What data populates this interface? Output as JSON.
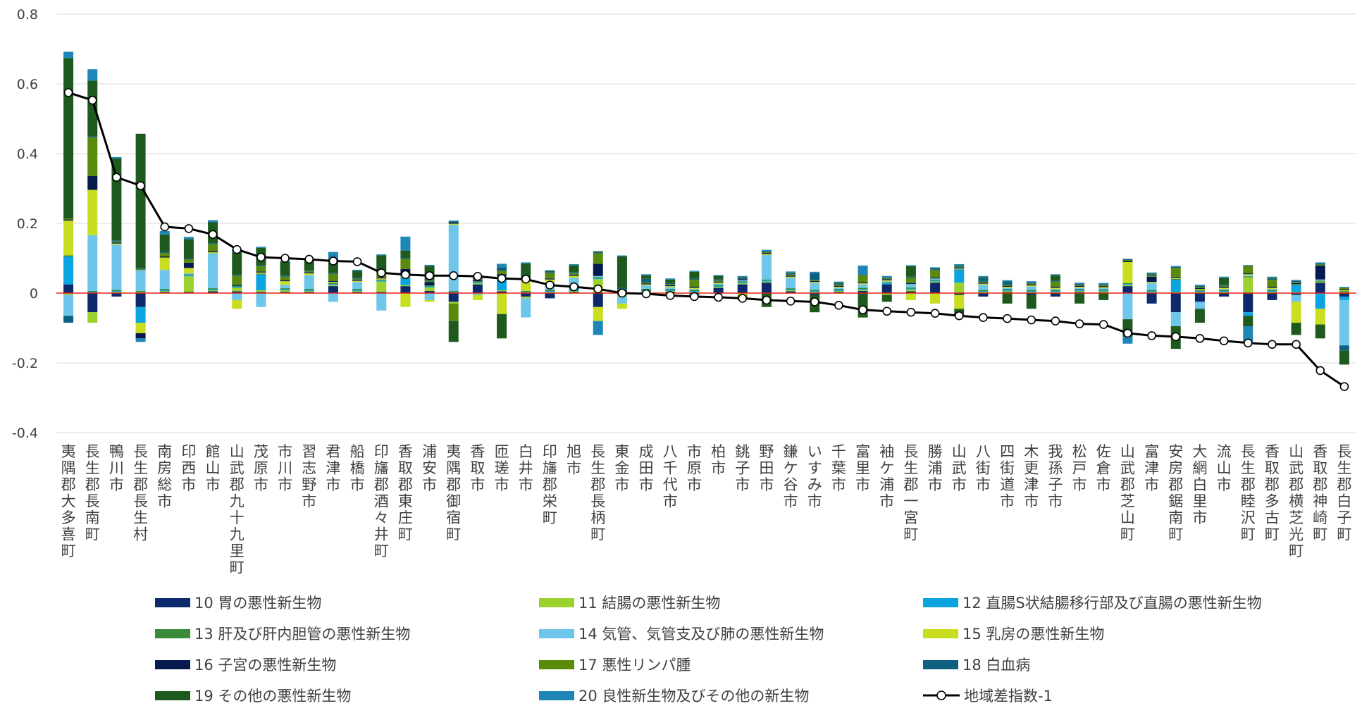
{
  "chart_data": {
    "type": "bar",
    "stacked": true,
    "ylim": [
      -0.4,
      0.8
    ],
    "yticks": [
      "0.8",
      "0.6",
      "0.4",
      "0.2",
      "0",
      "-0.2",
      "-0.4"
    ],
    "ytick_values": [
      0.8,
      0.6,
      0.4,
      0.2,
      0,
      -0.2,
      -0.4
    ],
    "zero_line_color": "#e2231a",
    "legend_position": "bottom",
    "categories": [
      "夷隅郡大多喜町",
      "長生郡長南町",
      "鴨川市",
      "長生郡長生村",
      "南房総市",
      "印西市",
      "館山市",
      "山武郡九十九里町",
      "茂原市",
      "市川市",
      "習志野市",
      "君津市",
      "船橋市",
      "印旛郡酒々井町",
      "香取郡東庄町",
      "浦安市",
      "夷隅郡御宿町",
      "香取市",
      "匝瑳市",
      "白井市",
      "印旛郡栄町",
      "旭市",
      "長生郡長柄町",
      "東金市",
      "成田市",
      "八千代市",
      "市原市",
      "柏市",
      "銚子市",
      "野田市",
      "鎌ケ谷市",
      "いすみ市",
      "千葉市",
      "富里市",
      "袖ケ浦市",
      "長生郡一宮町",
      "勝浦市",
      "山武市",
      "八街市",
      "四街道市",
      "木更津市",
      "我孫子市",
      "松戸市",
      "佐倉市",
      "山武郡芝山町",
      "富津市",
      "安房郡鋸南町",
      "大網白里市",
      "流山市",
      "長生郡睦沢町",
      "香取郡多古町",
      "山武郡横芝光町",
      "香取郡神崎町",
      "長生郡白子町"
    ],
    "series": [
      {
        "name": "10 胃の悪性新生物",
        "color": "#0c2a6b",
        "values": [
          0.025,
          -0.055,
          -0.01,
          -0.04,
          0.003,
          0.003,
          0.005,
          0.005,
          0.003,
          0.003,
          0.003,
          0.02,
          0.003,
          0.003,
          0.02,
          0.006,
          -0.025,
          0.025,
          0.005,
          -0.01,
          -0.015,
          0.003,
          -0.04,
          -0.005,
          0.003,
          0.003,
          -0.005,
          0.015,
          0.025,
          0.03,
          0.005,
          -0.005,
          0.003,
          0.006,
          0.025,
          0.005,
          0.03,
          -0.005,
          -0.01,
          0.003,
          -0.005,
          -0.01,
          0.003,
          0.002,
          0.02,
          -0.03,
          -0.055,
          -0.025,
          -0.01,
          -0.055,
          -0.02,
          -0.005,
          0.03,
          -0.01
        ]
      },
      {
        "name": "11 結腸の悪性新生物",
        "color": "#9bd22d",
        "values": [
          -0.005,
          -0.03,
          0.003,
          0.003,
          0.003,
          0.045,
          0.003,
          0.01,
          0.005,
          0.005,
          0.003,
          0.003,
          0.003,
          0.03,
          0.003,
          0.01,
          -0.005,
          0.003,
          0.003,
          -0.005,
          0.003,
          0.003,
          0.04,
          -0.005,
          0.003,
          0.003,
          0.003,
          0.003,
          0.003,
          0.003,
          0.003,
          0.003,
          0.003,
          0.003,
          -0.005,
          0.005,
          0.003,
          0.03,
          0.003,
          0.003,
          0.003,
          0.003,
          0.003,
          0.003,
          0.003,
          0.003,
          0.003,
          0.003,
          0.003,
          0.045,
          0.003,
          0.003,
          0.003,
          0.003
        ]
      },
      {
        "name": "12 直腸S状結腸移行部及び直腸の悪性新生物",
        "color": "#0aa5e0",
        "values": [
          0.08,
          0.003,
          0.003,
          -0.045,
          0.003,
          0.003,
          0.003,
          0.003,
          0.045,
          0.003,
          0.003,
          0.003,
          0.003,
          0.003,
          0.02,
          0.003,
          0.003,
          0.003,
          0.035,
          0.003,
          0.003,
          0.015,
          0.003,
          0.003,
          0.003,
          0.003,
          0.003,
          0.003,
          0.003,
          0.003,
          0.003,
          0.003,
          0.003,
          0.003,
          0.003,
          0.003,
          0.003,
          0.035,
          0.003,
          0.003,
          0.003,
          0.003,
          0.003,
          0.003,
          0.003,
          0.003,
          0.035,
          0.003,
          0.003,
          -0.01,
          0.003,
          0.02,
          -0.045,
          -0.01
        ]
      },
      {
        "name": "13 肝及び肝内胆管の悪性新生物",
        "color": "#3b8a3a",
        "values": [
          0.003,
          0.003,
          0.003,
          0.003,
          0.003,
          0.003,
          0.003,
          0.003,
          0.003,
          0.003,
          0.003,
          0.003,
          0.003,
          0.003,
          0.003,
          0.003,
          0.003,
          0.003,
          0.003,
          0.003,
          0.003,
          0.003,
          0.003,
          0.003,
          0.003,
          0.003,
          0.003,
          0.003,
          0.003,
          0.003,
          0.003,
          0.003,
          0.003,
          0.003,
          0.003,
          0.003,
          0.003,
          0.003,
          0.003,
          0.003,
          0.003,
          0.003,
          0.003,
          0.003,
          0.003,
          0.003,
          0.003,
          0.003,
          0.003,
          0.003,
          0.003,
          0.003,
          0.003,
          0.003
        ]
      },
      {
        "name": "14 気管、気管支及び肺の悪性新生物",
        "color": "#6ec6ea",
        "values": [
          -0.06,
          0.16,
          0.13,
          0.06,
          0.055,
          0.003,
          0.1,
          -0.02,
          -0.04,
          0.01,
          0.04,
          -0.025,
          0.02,
          -0.05,
          0.003,
          -0.02,
          0.19,
          -0.005,
          0.003,
          -0.055,
          0.02,
          0.02,
          0.003,
          -0.02,
          0.01,
          0.005,
          0.003,
          0.003,
          0.003,
          0.07,
          0.03,
          0.02,
          0.003,
          0.01,
          0.003,
          0.01,
          0.003,
          0.003,
          0.015,
          0.003,
          0.01,
          0.003,
          0.003,
          0.003,
          -0.075,
          0.02,
          -0.04,
          -0.02,
          0.003,
          0.003,
          0.003,
          -0.02,
          0.003,
          -0.13
        ]
      },
      {
        "name": "15 乳房の悪性新生物",
        "color": "#c8de1e",
        "values": [
          0.1,
          0.13,
          0.003,
          -0.03,
          0.035,
          0.015,
          0.003,
          -0.025,
          0.003,
          0.01,
          0.005,
          0.003,
          0.003,
          0.003,
          -0.04,
          -0.005,
          0.003,
          -0.015,
          -0.06,
          0.03,
          0.01,
          0.005,
          -0.04,
          -0.015,
          0.003,
          0.003,
          0.003,
          0.003,
          -0.005,
          0.003,
          0.003,
          0.003,
          0.003,
          0.003,
          0.003,
          -0.02,
          -0.03,
          -0.04,
          0.003,
          0.003,
          0.003,
          0.003,
          0.003,
          0.003,
          0.06,
          0.003,
          0.003,
          0.003,
          0.003,
          0.003,
          0.003,
          -0.06,
          -0.045,
          0.003
        ]
      },
      {
        "name": "16 子宮の悪性新生物",
        "color": "#061a4f",
        "values": [
          0.003,
          0.04,
          0.003,
          -0.015,
          0.003,
          0.015,
          0.003,
          0.003,
          0.003,
          0.003,
          0.003,
          0.003,
          0.003,
          0.003,
          0.02,
          0.01,
          0.003,
          0.003,
          0.005,
          0.003,
          0.003,
          0.003,
          0.035,
          0.003,
          0.003,
          0.003,
          0.003,
          0.003,
          0.003,
          0.003,
          0.003,
          0.003,
          0.003,
          0.003,
          0.003,
          0.003,
          0.003,
          0.003,
          0.003,
          0.003,
          0.003,
          0.003,
          0.003,
          0.003,
          0.003,
          0.015,
          0.003,
          0.003,
          0.003,
          0.003,
          0.003,
          0.003,
          0.04,
          0.003
        ]
      },
      {
        "name": "17 悪性リンパ腫",
        "color": "#5a8a0a",
        "values": [
          0.003,
          0.11,
          0.003,
          0.003,
          0.01,
          0.01,
          0.02,
          0.025,
          0.015,
          0.01,
          0.003,
          0.02,
          0.003,
          0.01,
          0.03,
          0.003,
          -0.05,
          0.003,
          0.01,
          0.003,
          0.015,
          0.005,
          0.03,
          0.003,
          0.003,
          0.003,
          0.02,
          0.003,
          -0.015,
          0.003,
          0.003,
          0.003,
          0.003,
          0.02,
          0.003,
          0.015,
          0.02,
          0.003,
          0.003,
          0.003,
          0.003,
          0.015,
          0.003,
          0.003,
          0.003,
          0.003,
          0.025,
          0.003,
          0.003,
          0.02,
          0.02,
          0.003,
          0.003,
          0.003
        ]
      },
      {
        "name": "18 白血病",
        "color": "#0e6080",
        "values": [
          -0.02,
          0.003,
          0.003,
          0.003,
          0.003,
          0.003,
          0.003,
          0.003,
          0.003,
          0.003,
          0.003,
          0.003,
          0.003,
          0.003,
          0.003,
          0.003,
          0.003,
          0.005,
          0.01,
          0.003,
          0.003,
          0.003,
          0.003,
          0.003,
          0.01,
          0.003,
          0.003,
          0.003,
          0.003,
          0.003,
          0.003,
          0.02,
          0.003,
          0.003,
          0.003,
          0.003,
          0.003,
          0.003,
          0.01,
          0.01,
          0.003,
          0.003,
          0.003,
          0.003,
          0.003,
          0.003,
          0.003,
          0.003,
          0.003,
          0.003,
          0.003,
          0.003,
          0.003,
          -0.015
        ]
      },
      {
        "name": "19 その他の悪性新生物",
        "color": "#1e5a1e",
        "values": [
          0.46,
          0.16,
          0.235,
          0.385,
          0.05,
          0.055,
          0.06,
          0.065,
          0.05,
          0.04,
          0.03,
          0.04,
          0.02,
          0.05,
          0.02,
          0.04,
          -0.06,
          0.003,
          -0.07,
          0.04,
          0.003,
          0.02,
          0.003,
          0.09,
          0.01,
          0.01,
          0.02,
          0.01,
          0.003,
          -0.04,
          0.003,
          -0.05,
          0.003,
          -0.07,
          -0.02,
          0.03,
          0.003,
          -0.02,
          0.003,
          -0.03,
          -0.04,
          0.015,
          -0.03,
          -0.02,
          -0.05,
          0.003,
          -0.065,
          -0.04,
          0.02,
          -0.03,
          0.003,
          -0.035,
          -0.04,
          -0.04
        ]
      },
      {
        "name": "20 良性新生物及びその他の新生物",
        "color": "#1f87b8",
        "values": [
          0.018,
          0.033,
          0.004,
          -0.01,
          0.01,
          0.006,
          0.006,
          0.01,
          0.003,
          0.003,
          0.003,
          0.02,
          0.003,
          0.003,
          0.04,
          0.003,
          0.003,
          0.003,
          0.01,
          0.003,
          0.003,
          0.003,
          -0.04,
          0.003,
          0.003,
          0.003,
          0.003,
          0.003,
          0.003,
          0.003,
          0.003,
          0.003,
          0.003,
          0.025,
          0.003,
          0.003,
          0.003,
          0.003,
          0.003,
          0.003,
          0.003,
          0.003,
          0.003,
          0.003,
          -0.02,
          0.003,
          0.003,
          0.003,
          0.003,
          -0.045,
          0.003,
          0.003,
          0.003,
          0.003
        ]
      }
    ],
    "line_series": {
      "name": "地域差指数-1",
      "color": "#000000",
      "values": [
        0.575,
        0.553,
        0.332,
        0.308,
        0.19,
        0.185,
        0.168,
        0.125,
        0.103,
        0.1,
        0.097,
        0.092,
        0.09,
        0.058,
        0.053,
        0.05,
        0.05,
        0.048,
        0.042,
        0.04,
        0.023,
        0.018,
        0.012,
        0.0,
        -0.002,
        -0.007,
        -0.01,
        -0.012,
        -0.015,
        -0.02,
        -0.023,
        -0.025,
        -0.035,
        -0.048,
        -0.052,
        -0.055,
        -0.058,
        -0.065,
        -0.07,
        -0.073,
        -0.077,
        -0.08,
        -0.088,
        -0.09,
        -0.115,
        -0.122,
        -0.125,
        -0.13,
        -0.137,
        -0.143,
        -0.147,
        -0.147,
        -0.222,
        -0.268
      ]
    }
  }
}
